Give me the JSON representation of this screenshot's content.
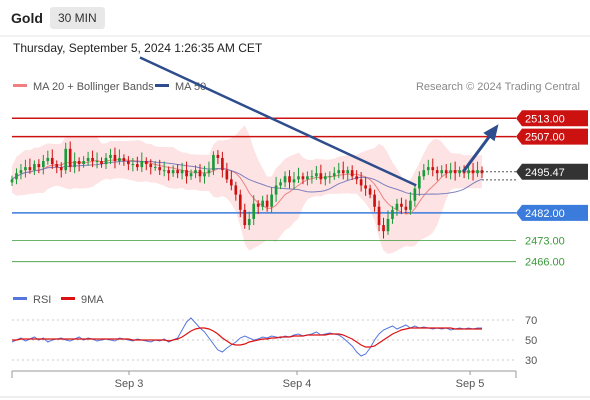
{
  "header": {
    "title": "Gold",
    "timeframe": "30 MIN"
  },
  "date_label": "Thursday, September 5, 2024 1:26:35 AM CET",
  "source": "Research © 2024 Trading Central",
  "colors": {
    "bb_fill": "#fde0e0",
    "ma20": "#f08080",
    "ma50": "#8080c0",
    "trendline": "#2e4d8c",
    "resistance": "#cc1111",
    "support": "#3a7bdc",
    "bottom": "#3a9a3a",
    "price_box": "#333333",
    "up": "#1a9a3a",
    "down": "#cc1111",
    "rsi": "#5577dd",
    "rsi_ma": "#dd1111"
  },
  "chart_data": [
    {
      "type": "candlestick",
      "title": "",
      "legend": [
        {
          "name": "MA 20 + Bollinger Bands",
          "color": "#f08080"
        },
        {
          "name": "MA 50",
          "color": "#2e4d8c"
        }
      ],
      "legend_position": "top-left",
      "x_ticks": [
        "Sep 3",
        "Sep 4",
        "Sep 5"
      ],
      "ylim": [
        2460,
        2519
      ],
      "current_price": "2495.47",
      "levels": [
        {
          "value": 2513.0,
          "label": "2513.00",
          "kind": "resistance"
        },
        {
          "value": 2507.0,
          "label": "2507.00",
          "kind": "resistance"
        },
        {
          "value": 2482.0,
          "label": "2482.00",
          "kind": "support"
        },
        {
          "value": 2473.0,
          "label": "2473.00",
          "kind": "minor"
        },
        {
          "value": 2466.0,
          "label": "2466.00",
          "kind": "minor"
        }
      ],
      "close_series": [
        2493,
        2495,
        2496,
        2497,
        2496,
        2498,
        2497,
        2499,
        2500,
        2498,
        2497,
        2496,
        2503,
        2497,
        2499,
        2498,
        2499,
        2500,
        2499,
        2499,
        2498,
        2500,
        2501,
        2499,
        2500,
        2499,
        2498,
        2498,
        2497,
        2499,
        2498,
        2497,
        2497,
        2496,
        2496,
        2495,
        2496,
        2495,
        2496,
        2494,
        2495,
        2496,
        2494,
        2495,
        2496,
        2501,
        2500,
        2496,
        2493,
        2491,
        2488,
        2483,
        2478,
        2480,
        2485,
        2484,
        2486,
        2484,
        2488,
        2491,
        2492,
        2494,
        2492,
        2493,
        2494,
        2493,
        2494,
        2494,
        2495,
        2493,
        2494,
        2494,
        2495,
        2496,
        2495,
        2496,
        2494,
        2493,
        2491,
        2490,
        2488,
        2484,
        2478,
        2476,
        2480,
        2483,
        2485,
        2484,
        2483,
        2486,
        2490,
        2494,
        2496,
        2497,
        2496,
        2495,
        2496,
        2495,
        2496,
        2495,
        2496,
        2495,
        2496,
        2495,
        2496,
        2495
      ],
      "trendline": {
        "from": [
          0,
          2510
        ],
        "to": [
          0.86,
          2491
        ]
      },
      "projection": {
        "from": [
          0.96,
          2495.5
        ],
        "to": [
          1.03,
          2510
        ]
      }
    },
    {
      "type": "line",
      "title": "",
      "legend": [
        {
          "name": "RSI",
          "color": "#5577dd"
        },
        {
          "name": "9MA",
          "color": "#dd1111"
        }
      ],
      "ylim": [
        20,
        80
      ],
      "y_ticks": [
        "70",
        "50",
        "30"
      ],
      "rsi": [
        48,
        50,
        52,
        49,
        51,
        53,
        50,
        52,
        48,
        50,
        51,
        52,
        50,
        49,
        51,
        53,
        50,
        52,
        51,
        49,
        50,
        51,
        50,
        49,
        52,
        51,
        50,
        49,
        51,
        50,
        49,
        48,
        50,
        49,
        51,
        48,
        50,
        52,
        60,
        68,
        72,
        67,
        62,
        58,
        52,
        46,
        40,
        38,
        42,
        45,
        48,
        52,
        54,
        52,
        50,
        51,
        53,
        52,
        54,
        53,
        52,
        54,
        53,
        55,
        56,
        54,
        55,
        56,
        58,
        55,
        56,
        57,
        56,
        55,
        52,
        48,
        44,
        38,
        34,
        36,
        42,
        50,
        56,
        60,
        62,
        64,
        61,
        63,
        65,
        62,
        64,
        62,
        63,
        62,
        61,
        62,
        61,
        62,
        60,
        61,
        62,
        61,
        62,
        61,
        62,
        62
      ],
      "ma9": [
        50,
        50,
        51,
        51,
        51,
        51,
        51,
        51,
        51,
        51,
        51,
        51,
        51,
        51,
        51,
        51,
        51,
        51,
        51,
        51,
        51,
        51,
        51,
        51,
        51,
        51,
        51,
        50,
        50,
        50,
        50,
        50,
        50,
        50,
        50,
        49,
        50,
        51,
        53,
        56,
        59,
        61,
        62,
        62,
        61,
        59,
        56,
        52,
        49,
        46,
        45,
        45,
        46,
        48,
        49,
        50,
        51,
        51,
        52,
        52,
        53,
        53,
        53,
        54,
        54,
        54,
        55,
        55,
        55,
        55,
        55,
        56,
        56,
        56,
        55,
        53,
        51,
        48,
        45,
        43,
        43,
        44,
        47,
        50,
        53,
        56,
        58,
        60,
        61,
        62,
        62,
        62,
        62,
        62,
        62,
        62,
        62,
        62,
        62,
        61,
        61,
        61,
        61,
        61,
        61,
        61
      ]
    }
  ]
}
